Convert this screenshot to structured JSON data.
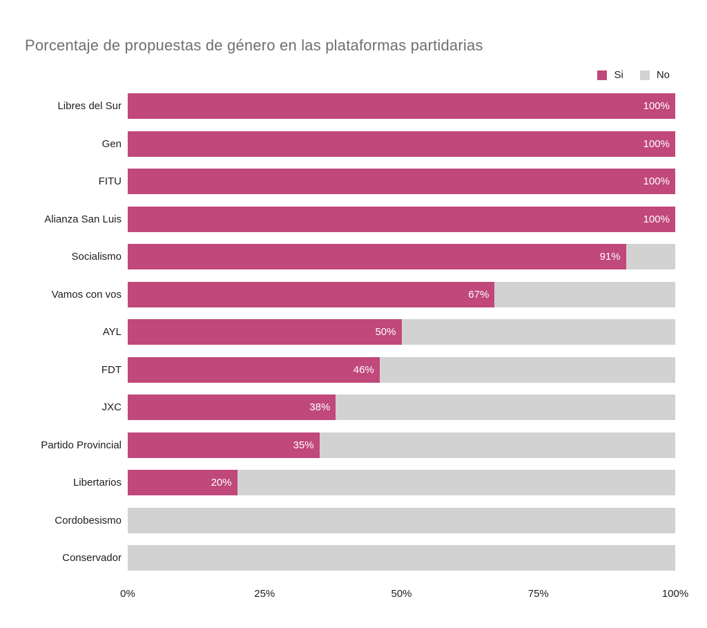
{
  "title": "Porcentaje de propuestas de género en las plataformas partidarias",
  "legend": {
    "position": "top-right",
    "items": [
      {
        "label": "Si",
        "color": "#c0487b"
      },
      {
        "label": "No",
        "color": "#d2d2d2"
      }
    ]
  },
  "colors": {
    "si": "#c0487b",
    "no": "#d2d2d2",
    "title_text": "#6f6f6f",
    "axis_text": "#1d1d1d",
    "bar_label_text": "#ffffff",
    "background": "#ffffff"
  },
  "chart_data": {
    "type": "bar",
    "orientation": "horizontal",
    "stacked": true,
    "title": "Porcentaje de propuestas de género en las plataformas partidarias",
    "xlabel": "",
    "ylabel": "",
    "xlim": [
      0,
      100
    ],
    "grid": false,
    "legend_position": "top-right",
    "categories": [
      "Libres del Sur",
      "Gen",
      "FITU",
      "Alianza San Luis",
      "Socialismo",
      "Vamos con vos",
      "AYL",
      "FDT",
      "JXC",
      "Partido Provincial",
      "Libertarios",
      "Cordobesismo",
      "Conservador"
    ],
    "series": [
      {
        "name": "Si",
        "color": "#c0487b",
        "values": [
          100,
          100,
          100,
          100,
          91,
          67,
          50,
          46,
          38,
          35,
          20,
          0,
          0
        ]
      },
      {
        "name": "No",
        "color": "#d2d2d2",
        "values": [
          0,
          0,
          0,
          0,
          9,
          33,
          50,
          54,
          62,
          65,
          80,
          100,
          100
        ]
      }
    ],
    "bar_labels": [
      "100%",
      "100%",
      "100%",
      "100%",
      "91%",
      "67%",
      "50%",
      "46%",
      "38%",
      "35%",
      "20%",
      "",
      ""
    ],
    "x_ticks": [
      {
        "label": "0%",
        "value": 0
      },
      {
        "label": "25%",
        "value": 25
      },
      {
        "label": "50%",
        "value": 50
      },
      {
        "label": "75%",
        "value": 75
      },
      {
        "label": "100%",
        "value": 100
      }
    ]
  }
}
